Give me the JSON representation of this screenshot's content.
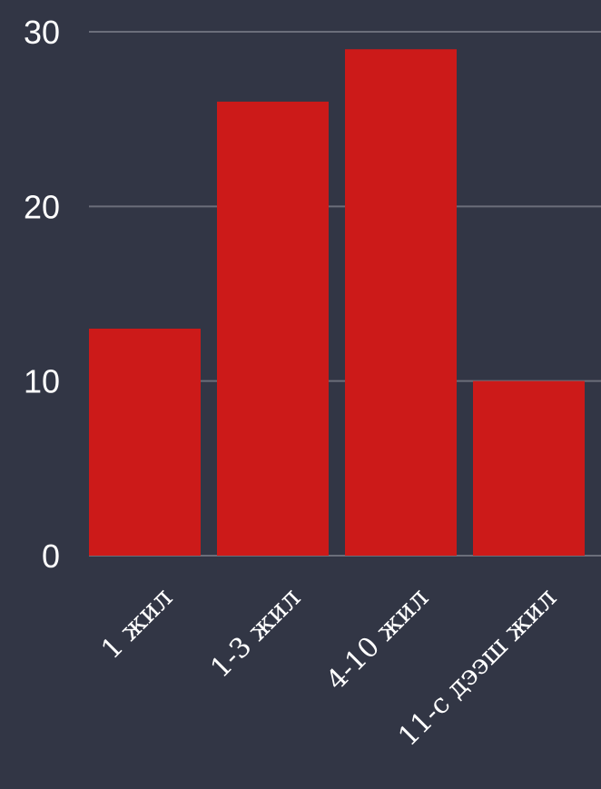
{
  "chart_data": {
    "type": "bar",
    "categories": [
      "1 жил",
      "1-3 жил",
      "4-10 жил",
      "11-с дээш жил"
    ],
    "values": [
      13,
      26,
      29,
      10
    ],
    "ylim": [
      0,
      30
    ],
    "yticks": [
      0,
      10,
      20,
      30
    ],
    "grid": true,
    "title": "",
    "xlabel": "",
    "ylabel": "",
    "colors": {
      "background": "#323645",
      "bar": "#cc1a19",
      "grid": "#6b6e7a",
      "text": "#ffffff"
    }
  }
}
